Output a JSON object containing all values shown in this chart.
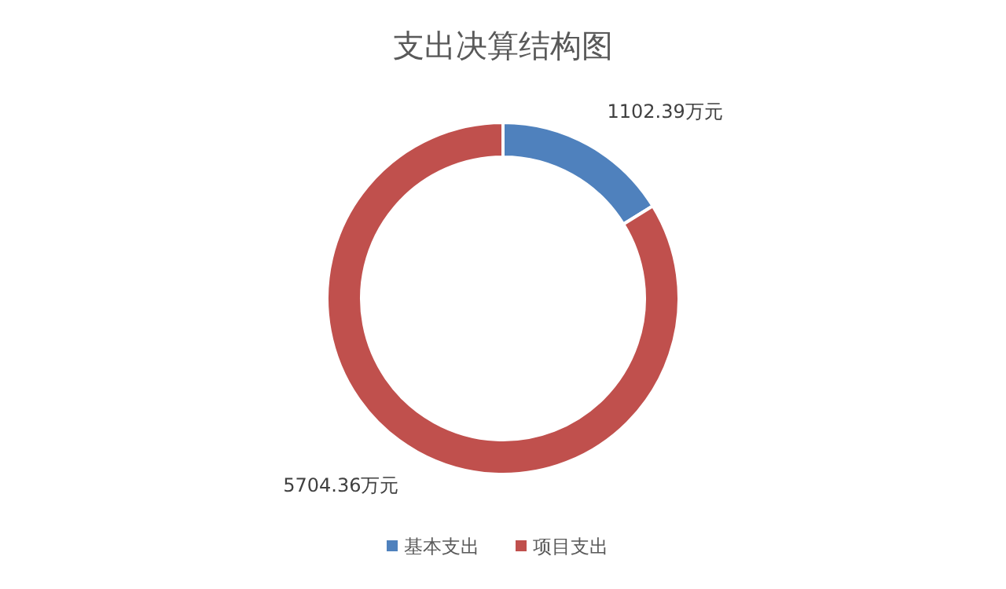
{
  "chart_data": {
    "type": "donut",
    "title": "支出决算结构图",
    "categories": [
      "基本支出",
      "项目支出"
    ],
    "values": [
      1102.39,
      5704.36
    ],
    "colors": [
      "#4f81bd",
      "#c0504d"
    ],
    "value_labels": [
      "1102.39万元",
      "5704.36万元"
    ],
    "legend": "bottom"
  }
}
